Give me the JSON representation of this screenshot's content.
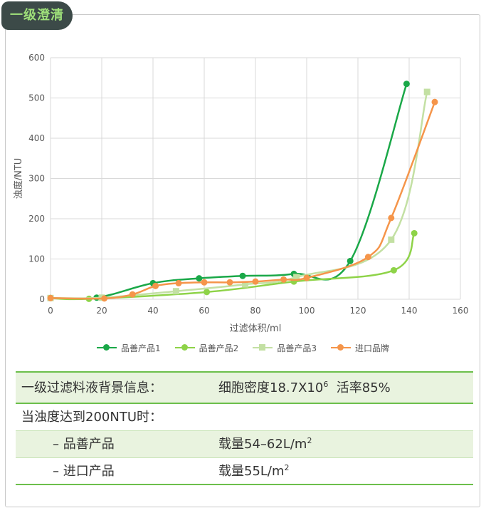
{
  "header": {
    "title": "一级澄清"
  },
  "chart_data": {
    "type": "line",
    "xlabel": "过滤体积/ml",
    "ylabel": "浊度/NTU",
    "xlim": [
      0,
      160
    ],
    "ylim": [
      0,
      600
    ],
    "xticks": [
      "0",
      "20",
      "40",
      "60",
      "80",
      "100",
      "120",
      "140",
      "160"
    ],
    "yticks": [
      "0",
      "100",
      "200",
      "300",
      "400",
      "500",
      "600"
    ],
    "grid": true,
    "legend_position": "bottom",
    "series": [
      {
        "name": "品善产品1",
        "color": "#1aa848",
        "marker": "circle",
        "points": [
          [
            0,
            3
          ],
          [
            18,
            4
          ],
          [
            40,
            40
          ],
          [
            58,
            52
          ],
          [
            75,
            58
          ],
          [
            95,
            63
          ],
          [
            117,
            95
          ],
          [
            139,
            535
          ]
        ]
      },
      {
        "name": "品善产品2",
        "color": "#8ed348",
        "marker": "circle",
        "points": [
          [
            0,
            3
          ],
          [
            15,
            1
          ],
          [
            61,
            18
          ],
          [
            95,
            44
          ],
          [
            134,
            72
          ],
          [
            142,
            164
          ]
        ]
      },
      {
        "name": "品善产品3",
        "color": "#c3e0a3",
        "marker": "square",
        "points": [
          [
            0,
            3
          ],
          [
            20,
            4
          ],
          [
            49,
            20
          ],
          [
            76,
            37
          ],
          [
            96,
            55
          ],
          [
            133,
            148
          ],
          [
            147,
            515
          ]
        ]
      },
      {
        "name": "进口品牌",
        "color": "#f5954a",
        "marker": "circle",
        "points": [
          [
            0,
            3
          ],
          [
            21,
            2
          ],
          [
            32,
            12
          ],
          [
            41,
            33
          ],
          [
            50,
            40
          ],
          [
            60,
            42
          ],
          [
            70,
            42
          ],
          [
            80,
            44
          ],
          [
            91,
            49
          ],
          [
            100,
            53
          ],
          [
            124,
            105
          ],
          [
            133,
            202
          ],
          [
            150,
            490
          ]
        ]
      }
    ]
  },
  "info": {
    "title_label": "一级过滤料液背景信息：",
    "density_label": "细胞密度18.7X10",
    "density_exp": "6",
    "viability": "活率85%",
    "condition": "当浊度达到200NTU时：",
    "rows": [
      {
        "label": "– 品善产品",
        "value": "载量54–62L/m",
        "exp": "2"
      },
      {
        "label": "– 进口产品",
        "value": "载量55L/m",
        "exp": "2"
      }
    ]
  }
}
